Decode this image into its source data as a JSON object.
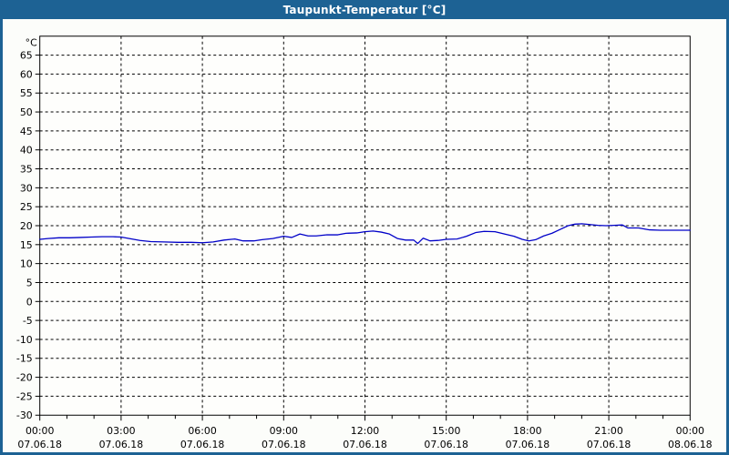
{
  "window": {
    "title": "Taupunkt-Temperatur [°C]",
    "titlebar_color": "#1d6294",
    "border_color": "#1d6294",
    "background_color": "#fcfdfa"
  },
  "chart_data": {
    "type": "line",
    "title": "Taupunkt-Temperatur [°C]",
    "y_unit_label": "°C",
    "ylim": [
      -30,
      70
    ],
    "y_tick_step": 5,
    "y_tick_values": [
      65,
      60,
      55,
      50,
      45,
      40,
      35,
      30,
      25,
      20,
      15,
      10,
      5,
      0,
      -5,
      -10,
      -15,
      -20,
      -25,
      -30
    ],
    "x_hours_span": 24,
    "x_minor_step_hours": 1,
    "x_ticks": [
      {
        "hour": 0,
        "time": "00:00",
        "date": "07.06.18"
      },
      {
        "hour": 3,
        "time": "03:00",
        "date": "07.06.18"
      },
      {
        "hour": 6,
        "time": "06:00",
        "date": "07.06.18"
      },
      {
        "hour": 9,
        "time": "09:00",
        "date": "07.06.18"
      },
      {
        "hour": 12,
        "time": "12:00",
        "date": "07.06.18"
      },
      {
        "hour": 15,
        "time": "15:00",
        "date": "07.06.18"
      },
      {
        "hour": 18,
        "time": "18:00",
        "date": "07.06.18"
      },
      {
        "hour": 21,
        "time": "21:00",
        "date": "07.06.18"
      },
      {
        "hour": 24,
        "time": "00:00",
        "date": "08.06.18"
      }
    ],
    "grid": "dashed",
    "legend": "none",
    "line_color": "#0000c8",
    "axis_color": "#000000",
    "series": [
      {
        "name": "Taupunkt",
        "x_hours": [
          0,
          0.3,
          0.7,
          1.1,
          1.5,
          1.9,
          2.3,
          2.7,
          3.0,
          3.3,
          3.7,
          4.1,
          4.6,
          5.1,
          5.6,
          6.0,
          6.4,
          6.8,
          7.2,
          7.5,
          7.9,
          8.2,
          8.6,
          9.0,
          9.3,
          9.6,
          9.9,
          10.2,
          10.6,
          11.0,
          11.3,
          11.7,
          12.0,
          12.3,
          12.6,
          12.9,
          13.2,
          13.5,
          13.8,
          13.95,
          14.15,
          14.4,
          14.7,
          15.0,
          15.4,
          15.75,
          16.1,
          16.4,
          16.8,
          17.2,
          17.5,
          17.8,
          18.05,
          18.3,
          18.6,
          18.9,
          19.2,
          19.5,
          19.75,
          20.0,
          20.3,
          20.6,
          20.9,
          21.2,
          21.5,
          21.7,
          22.1,
          22.5,
          22.9,
          23.4,
          24.0
        ],
        "values": [
          16.4,
          16.6,
          16.8,
          16.8,
          16.9,
          17.0,
          17.1,
          17.1,
          17.0,
          16.6,
          16.1,
          15.8,
          15.7,
          15.6,
          15.6,
          15.5,
          15.7,
          16.2,
          16.5,
          16.0,
          16.0,
          16.3,
          16.6,
          17.2,
          16.9,
          17.8,
          17.3,
          17.3,
          17.6,
          17.6,
          18.0,
          18.1,
          18.4,
          18.6,
          18.3,
          17.8,
          16.6,
          16.2,
          16.2,
          15.3,
          16.7,
          16.0,
          16.1,
          16.4,
          16.5,
          17.2,
          18.2,
          18.5,
          18.4,
          17.7,
          17.2,
          16.4,
          16.0,
          16.3,
          17.3,
          18.0,
          19.0,
          20.0,
          20.4,
          20.5,
          20.3,
          20.1,
          20.0,
          20.1,
          20.2,
          19.4,
          19.4,
          18.9,
          18.8,
          18.8,
          18.8
        ]
      }
    ]
  }
}
